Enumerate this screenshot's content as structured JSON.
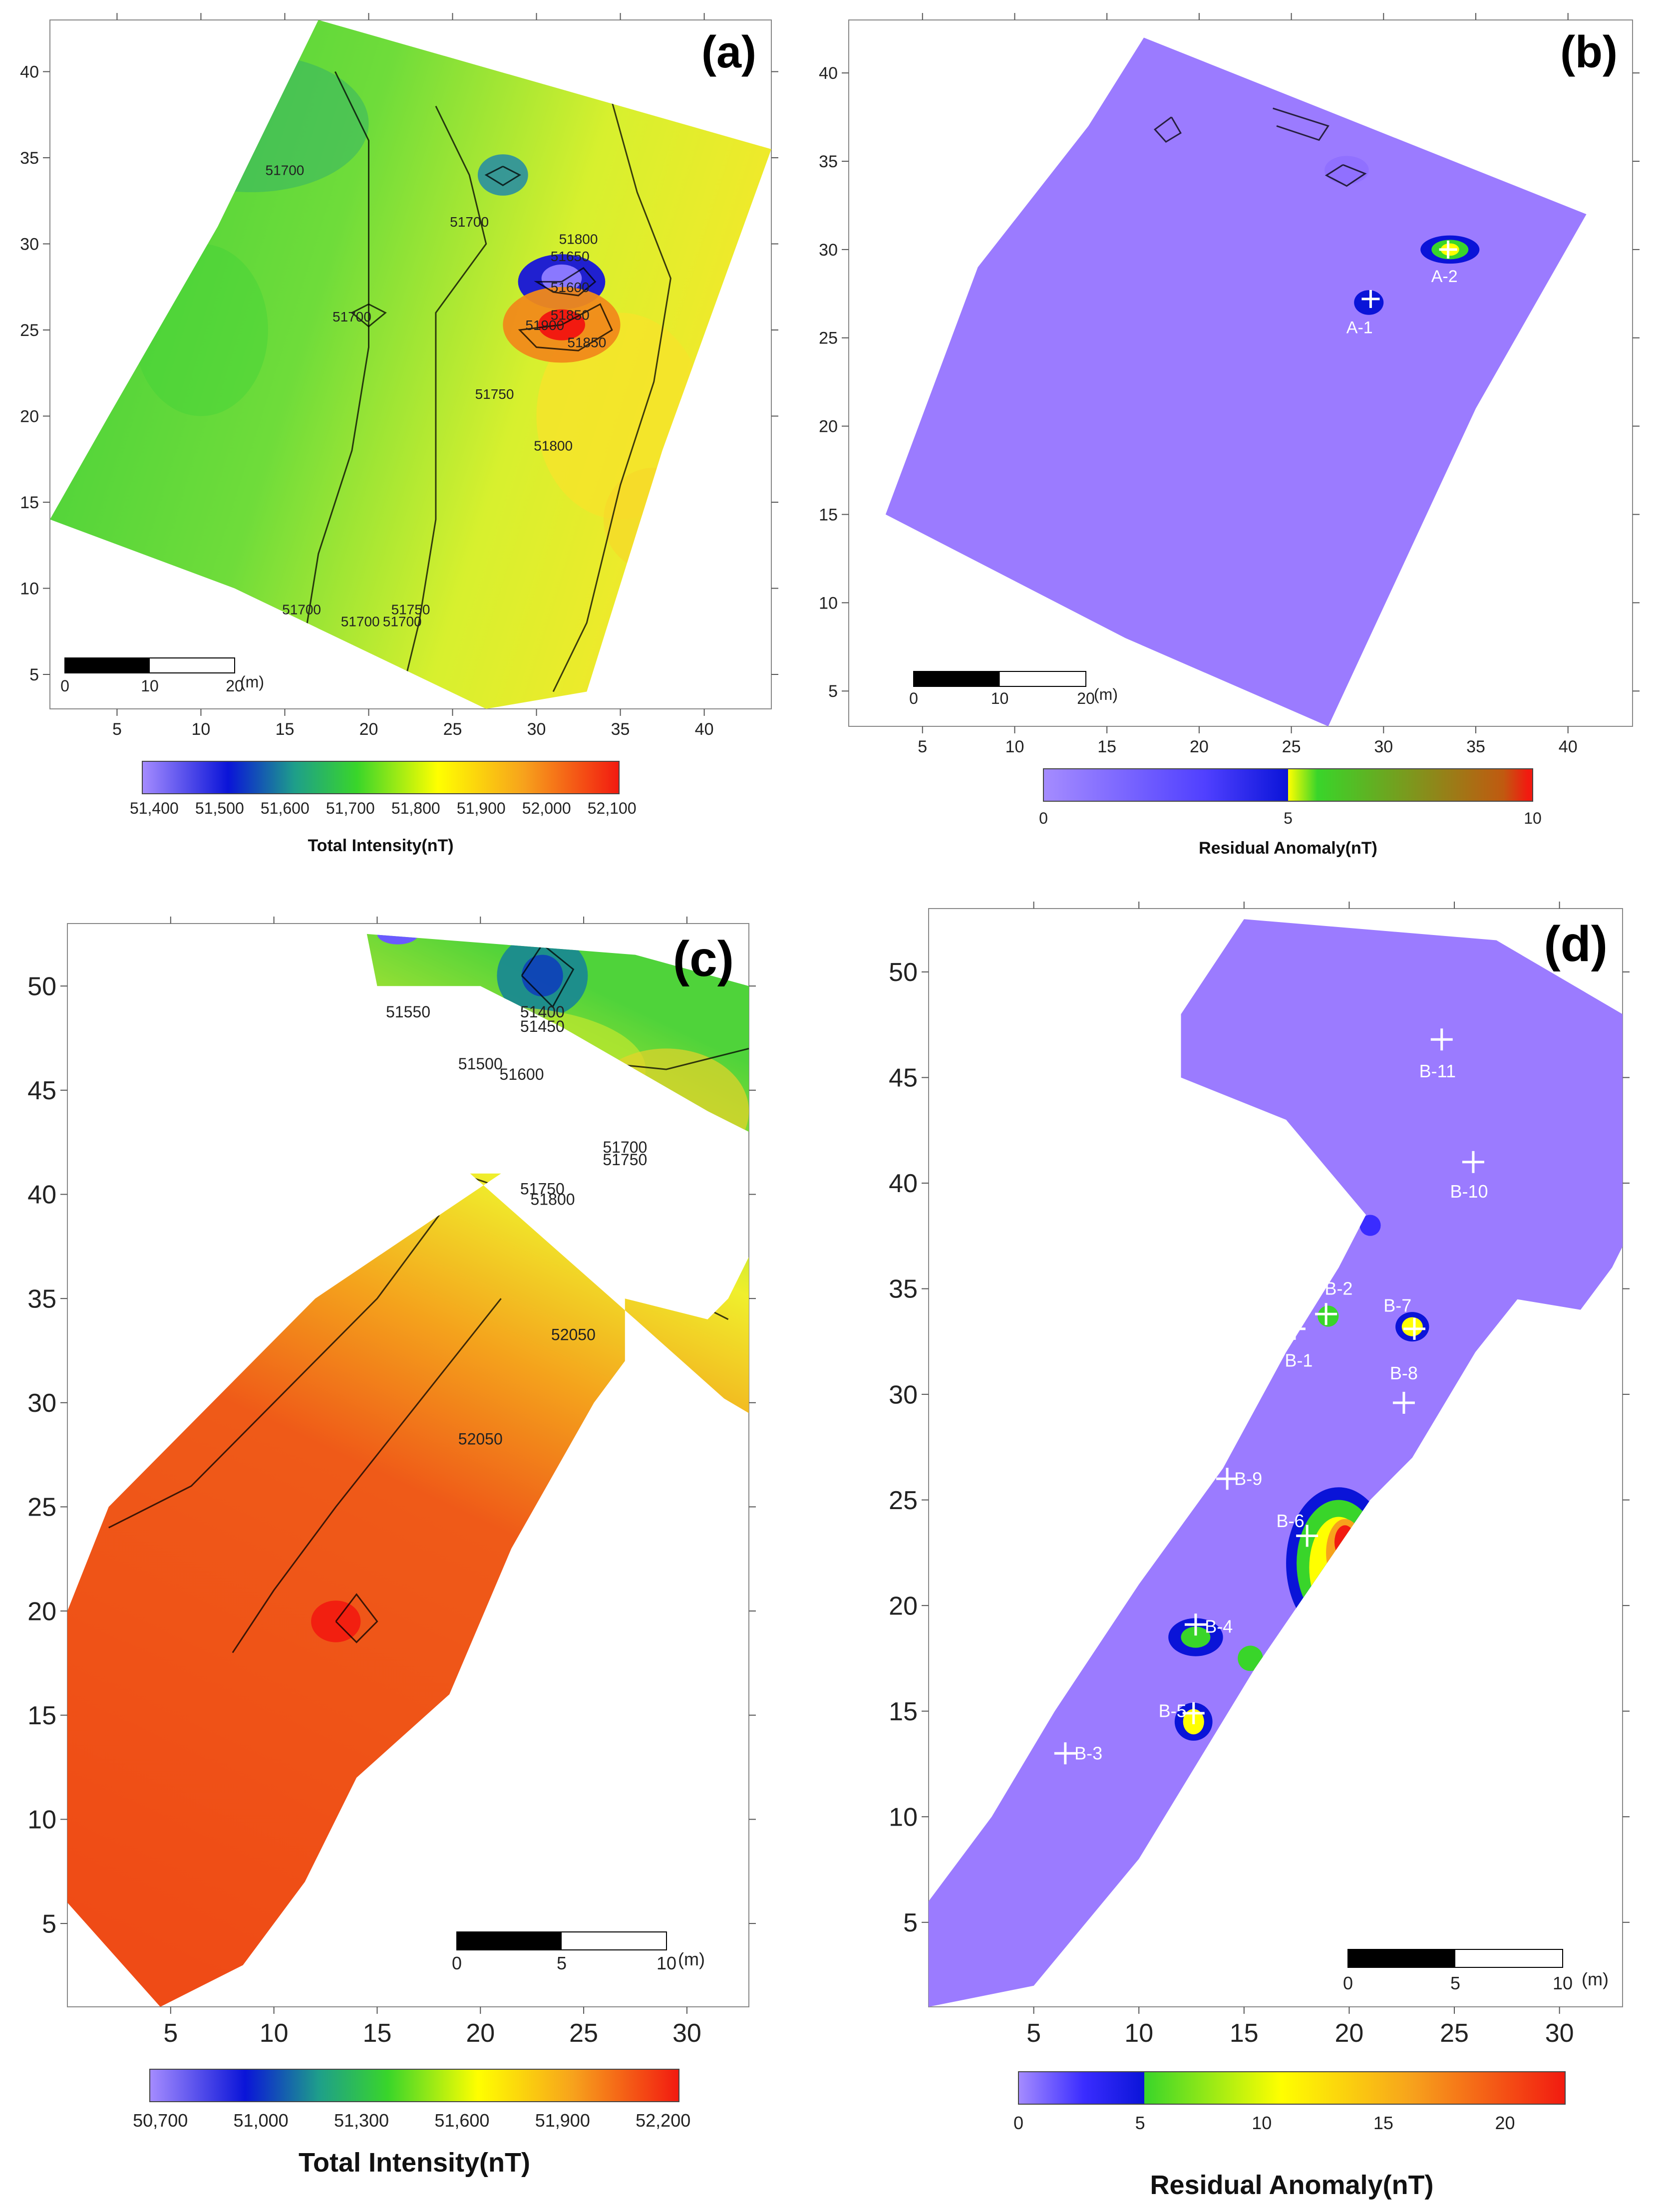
{
  "panels": [
    {
      "id": "a",
      "label": "(a)",
      "x_ticks": [
        "5",
        "10",
        "15",
        "20",
        "25",
        "30",
        "35",
        "40"
      ],
      "y_ticks": [
        "40",
        "35",
        "30",
        "25",
        "20",
        "15",
        "10",
        "5"
      ],
      "contour_labels": [
        "51700",
        "51700",
        "51800",
        "51700",
        "51650",
        "51600",
        "51850",
        "51900",
        "51850",
        "51700",
        "51750",
        "51800",
        "51700",
        "51700",
        "51750"
      ],
      "scale_bar": {
        "ticks": [
          "0",
          "10",
          "20"
        ],
        "unit": "(m)"
      },
      "colorbar": {
        "tick_labels": [
          "51,400",
          "51,500",
          "51,600",
          "51,700",
          "51,800",
          "51,900",
          "52,000",
          "52,100"
        ],
        "title": "Total Intensity(nT)"
      },
      "markers": []
    },
    {
      "id": "b",
      "label": "(b)",
      "x_ticks": [
        "5",
        "10",
        "15",
        "20",
        "25",
        "30",
        "35",
        "40"
      ],
      "y_ticks": [
        "40",
        "35",
        "30",
        "25",
        "20",
        "15",
        "10",
        "5"
      ],
      "contour_labels": [],
      "scale_bar": {
        "ticks": [
          "0",
          "10",
          "20"
        ],
        "unit": "(m)"
      },
      "colorbar": {
        "tick_labels": [
          "0",
          "5",
          "10"
        ],
        "title": "Residual Anomaly(nT)"
      },
      "markers": [
        "A-1",
        "A-2"
      ]
    },
    {
      "id": "c",
      "label": "(c)",
      "x_ticks": [
        "5",
        "10",
        "15",
        "20",
        "25",
        "30"
      ],
      "y_ticks": [
        "50",
        "45",
        "40",
        "35",
        "30",
        "25",
        "20",
        "15",
        "10",
        "5"
      ],
      "contour_labels": [
        "51550",
        "51400",
        "51450",
        "51500",
        "51600",
        "51700",
        "51750",
        "51750",
        "51800",
        "52050",
        "52050"
      ],
      "scale_bar": {
        "ticks": [
          "0",
          "5",
          "10"
        ],
        "unit": "(m)"
      },
      "colorbar": {
        "tick_labels": [
          "50,700",
          "51,000",
          "51,300",
          "51,600",
          "51,900",
          "52,200"
        ],
        "title": "Total Intensity(nT)"
      },
      "markers": []
    },
    {
      "id": "d",
      "label": "(d)",
      "x_ticks": [
        "5",
        "10",
        "15",
        "20",
        "25",
        "30"
      ],
      "y_ticks": [
        "50",
        "45",
        "40",
        "35",
        "30",
        "25",
        "20",
        "15",
        "10",
        "5"
      ],
      "contour_labels": [],
      "scale_bar": {
        "ticks": [
          "0",
          "5",
          "10"
        ],
        "unit": "(m)"
      },
      "colorbar": {
        "tick_labels": [
          "0",
          "5",
          "10",
          "15",
          "20"
        ],
        "title": "Residual Anomaly(nT)"
      },
      "markers": [
        "B-1",
        "B-2",
        "B-3",
        "B-4",
        "B-5",
        "B-6",
        "B-7",
        "B-8",
        "B-9",
        "B-10",
        "B-11"
      ]
    }
  ],
  "colors": {
    "violet": "#9b7bff",
    "blue": "#0a14d8",
    "teal": "#1e9f8a",
    "green": "#39d52a",
    "yellow": "#ffff00",
    "orange": "#f7a21c",
    "red": "#f21a10",
    "dark_red": "#b40000",
    "contour": "#000000"
  }
}
